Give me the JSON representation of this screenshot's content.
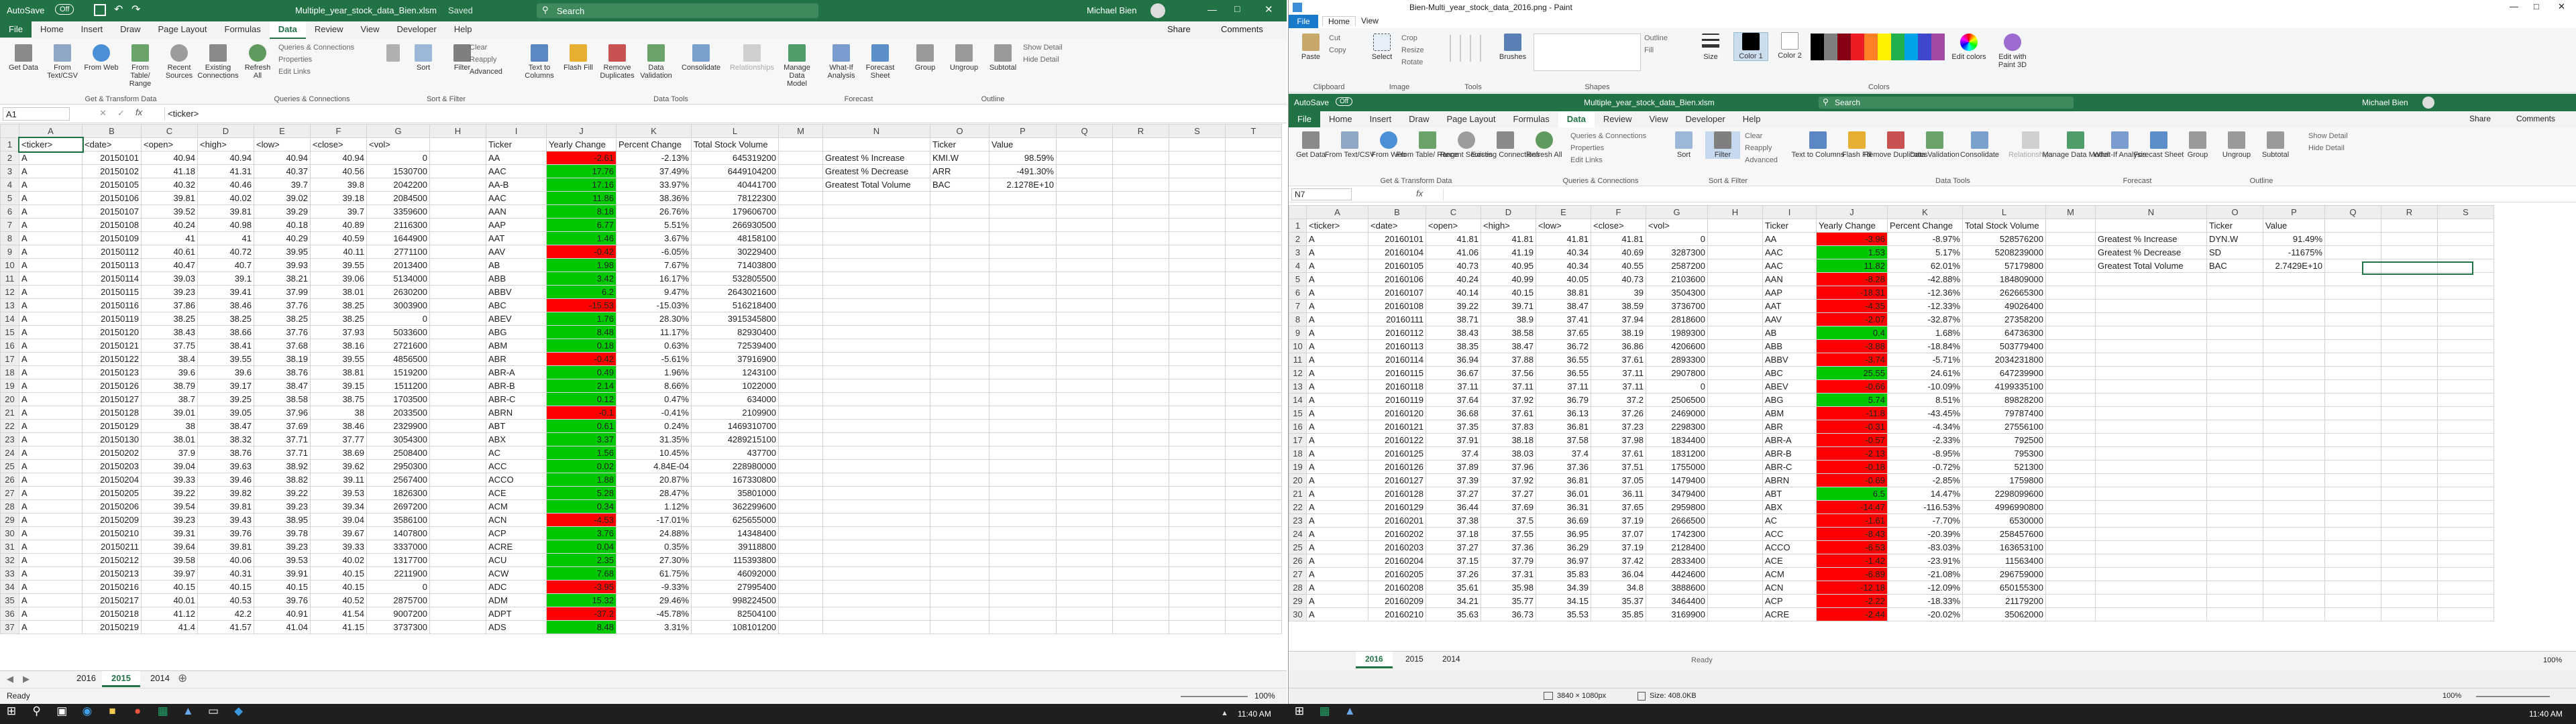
{
  "taskbar": {
    "search_hint": "Type here to search",
    "clock_left": "11:40 AM",
    "clock_right": "11:40 AM"
  },
  "left": {
    "autosave": "AutoSave",
    "autosave_state": "Off",
    "title": "Multiple_year_stock_data_Bien.xlsm",
    "saved": "Saved",
    "search": "Search",
    "user": "Michael Bien",
    "tabs": [
      "File",
      "Home",
      "Insert",
      "Draw",
      "Page Layout",
      "Formulas",
      "Data",
      "Review",
      "View",
      "Developer",
      "Help"
    ],
    "share": "Share",
    "comments": "Comments",
    "ribbon": {
      "get": [
        "Get Data",
        "From Text/CSV",
        "From Web",
        "From Table/ Range",
        "Recent Sources",
        "Existing Connections"
      ],
      "queries": [
        "Refresh All",
        "Queries & Connections",
        "Properties",
        "Edit Links"
      ],
      "sort": [
        "Sort",
        "Filter",
        "Clear",
        "Reapply",
        "Advanced"
      ],
      "tools": [
        "Text to Columns",
        "Flash Fill",
        "Remove Duplicates",
        "Data Validation",
        "Consolidate",
        "Relationships",
        "Manage Data Model"
      ],
      "forecast": [
        "What-If Analysis",
        "Forecast Sheet"
      ],
      "outline": [
        "Group",
        "Ungroup",
        "Subtotal",
        "Show Detail",
        "Hide Detail"
      ],
      "groups": [
        "Get & Transform Data",
        "Queries & Connections",
        "Sort & Filter",
        "Data Tools",
        "Forecast",
        "Outline"
      ]
    },
    "namebox": "A1",
    "formula": "<ticker>",
    "cols": [
      "A",
      "B",
      "C",
      "D",
      "E",
      "F",
      "G",
      "H",
      "I",
      "J",
      "K",
      "L",
      "M",
      "N",
      "O",
      "P",
      "Q",
      "R",
      "S",
      "T"
    ],
    "headers": [
      "<ticker>",
      "<date>",
      "<open>",
      "<high>",
      "<low>",
      "<close>",
      "<vol>",
      "",
      "Ticker",
      "Yearly Change",
      "Percent Change",
      "Total Stock Volume",
      "",
      "",
      "Ticker",
      "Value"
    ],
    "summary": [
      [
        "Greatest % Increase",
        "KMI.W",
        "98.59%"
      ],
      [
        "Greatest % Decrease",
        "ARR",
        "-491.30%"
      ],
      [
        "Greatest Total Volume",
        "BAC",
        "2.1278E+10"
      ]
    ],
    "rows": [
      [
        "A",
        "20150101",
        "40.94",
        "40.94",
        "40.94",
        "40.94",
        "0",
        "AA",
        "-2.61",
        "-2.13%",
        "645319200",
        "r"
      ],
      [
        "A",
        "20150102",
        "41.18",
        "41.31",
        "40.37",
        "40.56",
        "1530700",
        "AAC",
        "17.76",
        "37.49%",
        "6449104200",
        "g"
      ],
      [
        "A",
        "20150105",
        "40.32",
        "40.46",
        "39.7",
        "39.8",
        "2042200",
        "AA-B",
        "17.16",
        "33.97%",
        "40441700",
        "g"
      ],
      [
        "A",
        "20150106",
        "39.81",
        "40.02",
        "39.02",
        "39.18",
        "2084500",
        "AAC",
        "11.86",
        "38.36%",
        "78122300",
        "g"
      ],
      [
        "A",
        "20150107",
        "39.52",
        "39.81",
        "39.29",
        "39.7",
        "3359600",
        "AAN",
        "8.18",
        "26.76%",
        "179606700",
        "g"
      ],
      [
        "A",
        "20150108",
        "40.24",
        "40.98",
        "40.18",
        "40.89",
        "2116300",
        "AAP",
        "6.77",
        "5.51%",
        "266930500",
        "g"
      ],
      [
        "A",
        "20150109",
        "41",
        "41",
        "40.29",
        "40.59",
        "1644900",
        "AAT",
        "1.46",
        "3.67%",
        "48158100",
        "g"
      ],
      [
        "A",
        "20150112",
        "40.61",
        "40.72",
        "39.95",
        "40.11",
        "2771100",
        "AAV",
        "-0.42",
        "-6.05%",
        "30229400",
        "r"
      ],
      [
        "A",
        "20150113",
        "40.47",
        "40.7",
        "39.93",
        "39.55",
        "2013400",
        "AB",
        "1.98",
        "7.67%",
        "71403800",
        "g"
      ],
      [
        "A",
        "20150114",
        "39.03",
        "39.1",
        "38.21",
        "39.06",
        "5134000",
        "ABB",
        "3.42",
        "16.17%",
        "532805500",
        "g"
      ],
      [
        "A",
        "20150115",
        "39.23",
        "39.41",
        "37.99",
        "38.01",
        "2630200",
        "ABBV",
        "6.2",
        "9.47%",
        "2643021600",
        "g"
      ],
      [
        "A",
        "20150116",
        "37.86",
        "38.46",
        "37.76",
        "38.25",
        "3003900",
        "ABC",
        "-15.53",
        "-15.03%",
        "516218400",
        "r"
      ],
      [
        "A",
        "20150119",
        "38.25",
        "38.25",
        "38.25",
        "38.25",
        "0",
        "ABEV",
        "1.76",
        "28.30%",
        "3915345800",
        "g"
      ],
      [
        "A",
        "20150120",
        "38.43",
        "38.66",
        "37.76",
        "37.93",
        "5033600",
        "ABG",
        "8.48",
        "11.17%",
        "82930400",
        "g"
      ],
      [
        "A",
        "20150121",
        "37.75",
        "38.41",
        "37.68",
        "38.16",
        "2721600",
        "ABM",
        "0.18",
        "0.63%",
        "72539400",
        "g"
      ],
      [
        "A",
        "20150122",
        "38.4",
        "39.55",
        "38.19",
        "39.55",
        "4856500",
        "ABR",
        "-0.42",
        "-5.61%",
        "37916900",
        "r"
      ],
      [
        "A",
        "20150123",
        "39.6",
        "39.6",
        "38.76",
        "38.81",
        "1519200",
        "ABR-A",
        "0.49",
        "1.96%",
        "1243100",
        "g"
      ],
      [
        "A",
        "20150126",
        "38.79",
        "39.17",
        "38.47",
        "39.15",
        "1511200",
        "ABR-B",
        "2.14",
        "8.66%",
        "1022000",
        "g"
      ],
      [
        "A",
        "20150127",
        "38.7",
        "39.25",
        "38.58",
        "38.75",
        "1703500",
        "ABR-C",
        "0.12",
        "0.47%",
        "634000",
        "g"
      ],
      [
        "A",
        "20150128",
        "39.01",
        "39.05",
        "37.96",
        "38",
        "2033500",
        "ABRN",
        "-0.1",
        "-0.41%",
        "2109900",
        "r"
      ],
      [
        "A",
        "20150129",
        "38",
        "38.47",
        "37.69",
        "38.46",
        "2329900",
        "ABT",
        "0.61",
        "0.24%",
        "1469310700",
        "g"
      ],
      [
        "A",
        "20150130",
        "38.01",
        "38.32",
        "37.71",
        "37.77",
        "3054300",
        "ABX",
        "3.37",
        "31.35%",
        "4289215100",
        "g"
      ],
      [
        "A",
        "20150202",
        "37.9",
        "38.76",
        "37.71",
        "38.69",
        "2508400",
        "AC",
        "1.56",
        "10.45%",
        "437700",
        "g"
      ],
      [
        "A",
        "20150203",
        "39.04",
        "39.63",
        "38.92",
        "39.62",
        "2950300",
        "ACC",
        "0.02",
        "4.84E-04",
        "228980000",
        "g"
      ],
      [
        "A",
        "20150204",
        "39.33",
        "39.46",
        "38.82",
        "39.11",
        "2567400",
        "ACCO",
        "1.88",
        "20.87%",
        "167330800",
        "g"
      ],
      [
        "A",
        "20150205",
        "39.22",
        "39.82",
        "39.22",
        "39.53",
        "1826300",
        "ACE",
        "5.28",
        "28.47%",
        "35801000",
        "g"
      ],
      [
        "A",
        "20150206",
        "39.54",
        "39.81",
        "39.23",
        "39.34",
        "2697200",
        "ACM",
        "0.34",
        "1.12%",
        "362299600",
        "g"
      ],
      [
        "A",
        "20150209",
        "39.23",
        "39.43",
        "38.95",
        "39.04",
        "3586100",
        "ACN",
        "-4.53",
        "-17.01%",
        "625655000",
        "r"
      ],
      [
        "A",
        "20150210",
        "39.31",
        "39.76",
        "39.78",
        "39.67",
        "1407800",
        "ACP",
        "3.76",
        "24.88%",
        "14348400",
        "g"
      ],
      [
        "A",
        "20150211",
        "39.64",
        "39.81",
        "39.23",
        "39.33",
        "3337000",
        "ACRE",
        "0.04",
        "0.35%",
        "39118800",
        "g"
      ],
      [
        "A",
        "20150212",
        "39.58",
        "40.06",
        "39.53",
        "40.02",
        "1317700",
        "ACU",
        "2.35",
        "27.30%",
        "115393800",
        "g"
      ],
      [
        "A",
        "20150213",
        "39.97",
        "40.31",
        "39.91",
        "40.15",
        "2211900",
        "ACW",
        "7.68",
        "61.75%",
        "46092000",
        "g"
      ],
      [
        "A",
        "20150216",
        "40.15",
        "40.15",
        "40.15",
        "40.15",
        "0",
        "ADC",
        "-3.95",
        "-9.33%",
        "27995400",
        "r"
      ],
      [
        "A",
        "20150217",
        "40.01",
        "40.53",
        "39.76",
        "40.52",
        "2875700",
        "ADM",
        "15.32",
        "29.46%",
        "998224500",
        "g"
      ],
      [
        "A",
        "20150218",
        "41.12",
        "42.2",
        "40.91",
        "41.54",
        "9007200",
        "ADPT",
        "-37.2",
        "-45.78%",
        "82504100",
        "r"
      ],
      [
        "A",
        "20150219",
        "41.4",
        "41.57",
        "41.04",
        "41.15",
        "3737300",
        "ADS",
        "8.48",
        "3.31%",
        "108101200",
        "g"
      ]
    ],
    "sheets": [
      "2016",
      "2015",
      "2014"
    ],
    "active_sheet": "2015",
    "status": {
      "ready": "Ready",
      "zoom": "100%"
    }
  },
  "paint": {
    "title": "Bien-Multi_year_stock_data_2016.png - Paint",
    "tabs": [
      "File",
      "Home",
      "View"
    ],
    "groups": [
      "Clipboard",
      "Image",
      "Tools",
      "Shapes",
      "Colors"
    ],
    "tools": [
      "Paste",
      "Cut",
      "Copy",
      "Select",
      "Crop",
      "Resize",
      "Rotate",
      "Brushes",
      "Outline",
      "Fill",
      "Size",
      "Color 1",
      "Color 2",
      "Edit colors",
      "Edit with Paint 3D"
    ],
    "status": {
      "dims": "3840 × 1080px",
      "size": "Size: 408.0KB",
      "zoom": "100%"
    }
  },
  "right": {
    "autosave": "AutoSave",
    "autosave_state": "Off",
    "title": "Multiple_year_stock_data_Bien.xlsm",
    "search": "Search",
    "user": "Michael Bien",
    "tabs": [
      "File",
      "Home",
      "Insert",
      "Draw",
      "Page Layout",
      "Formulas",
      "Data",
      "Review",
      "View",
      "Developer",
      "Help"
    ],
    "share": "Share",
    "comments": "Comments",
    "namebox": "N7",
    "formula": "",
    "cols": [
      "A",
      "B",
      "C",
      "D",
      "E",
      "F",
      "G",
      "H",
      "I",
      "J",
      "K",
      "L",
      "M",
      "N",
      "O",
      "P",
      "Q",
      "R",
      "S"
    ],
    "headers": [
      "<ticker>",
      "<date>",
      "<open>",
      "<high>",
      "<low>",
      "<close>",
      "<vol>",
      "",
      "Ticker",
      "Yearly Change",
      "Percent Change",
      "Total Stock Volume",
      "",
      "",
      "Ticker",
      "Value"
    ],
    "summary": [
      [
        "Greatest % Increase",
        "DYN.W",
        "91.49%"
      ],
      [
        "Greatest % Decrease",
        "SD",
        "-11675%"
      ],
      [
        "Greatest Total Volume",
        "BAC",
        "2.7429E+10"
      ]
    ],
    "rows": [
      [
        "A",
        "20160101",
        "41.81",
        "41.81",
        "41.81",
        "41.81",
        "0",
        "AA",
        "-3.96",
        "-8.97%",
        "528576200",
        "r"
      ],
      [
        "A",
        "20160104",
        "41.06",
        "41.19",
        "40.34",
        "40.69",
        "3287300",
        "AAC",
        "1.53",
        "5.17%",
        "5208239000",
        "g"
      ],
      [
        "A",
        "20160105",
        "40.73",
        "40.95",
        "40.34",
        "40.55",
        "2587200",
        "AAC",
        "11.82",
        "62.01%",
        "57179800",
        "g"
      ],
      [
        "A",
        "20160106",
        "40.24",
        "40.99",
        "40.05",
        "40.73",
        "2103600",
        "AAN",
        "-8.28",
        "-42.88%",
        "184809000",
        "r"
      ],
      [
        "A",
        "20160107",
        "40.14",
        "40.15",
        "38.81",
        "39",
        "3504300",
        "AAP",
        "-18.31",
        "-12.36%",
        "262665300",
        "r"
      ],
      [
        "A",
        "20160108",
        "39.22",
        "39.71",
        "38.47",
        "38.59",
        "3736700",
        "AAT",
        "-4.35",
        "-12.33%",
        "49026400",
        "r"
      ],
      [
        "A",
        "20160111",
        "38.71",
        "38.9",
        "37.41",
        "37.94",
        "2818600",
        "AAV",
        "-2.07",
        "-32.87%",
        "27358200",
        "r"
      ],
      [
        "A",
        "20160112",
        "38.43",
        "38.58",
        "37.65",
        "38.19",
        "1989300",
        "AB",
        "0.4",
        "1.68%",
        "64736300",
        "g"
      ],
      [
        "A",
        "20160113",
        "38.35",
        "38.47",
        "36.72",
        "36.86",
        "4206600",
        "ABB",
        "-3.88",
        "-18.84%",
        "503779400",
        "r"
      ],
      [
        "A",
        "20160114",
        "36.94",
        "37.88",
        "36.55",
        "37.61",
        "2893300",
        "ABBV",
        "-3.74",
        "-5.71%",
        "2034231800",
        "r"
      ],
      [
        "A",
        "20160115",
        "36.67",
        "37.56",
        "36.55",
        "37.11",
        "2907800",
        "ABC",
        "25.55",
        "24.61%",
        "647239900",
        "g"
      ],
      [
        "A",
        "20160118",
        "37.11",
        "37.11",
        "37.11",
        "37.11",
        "0",
        "ABEV",
        "-0.66",
        "-10.09%",
        "4199335100",
        "r"
      ],
      [
        "A",
        "20160119",
        "37.64",
        "37.92",
        "36.79",
        "37.2",
        "2506500",
        "ABG",
        "5.74",
        "8.51%",
        "89828200",
        "g"
      ],
      [
        "A",
        "20160120",
        "36.68",
        "37.61",
        "36.13",
        "37.26",
        "2469000",
        "ABM",
        "-11.8",
        "-43.45%",
        "79787400",
        "r"
      ],
      [
        "A",
        "20160121",
        "37.35",
        "37.83",
        "36.81",
        "37.23",
        "2298300",
        "ABR",
        "-0.31",
        "-4.34%",
        "27556100",
        "r"
      ],
      [
        "A",
        "20160122",
        "37.91",
        "38.18",
        "37.58",
        "37.98",
        "1834400",
        "ABR-A",
        "-0.57",
        "-2.33%",
        "792500",
        "r"
      ],
      [
        "A",
        "20160125",
        "37.4",
        "38.03",
        "37.4",
        "37.61",
        "1831200",
        "ABR-B",
        "-2.13",
        "-8.95%",
        "795300",
        "r"
      ],
      [
        "A",
        "20160126",
        "37.89",
        "37.96",
        "37.36",
        "37.51",
        "1755000",
        "ABR-C",
        "-0.18",
        "-0.72%",
        "521300",
        "r"
      ],
      [
        "A",
        "20160127",
        "37.39",
        "37.92",
        "36.81",
        "37.05",
        "1479400",
        "ABRN",
        "-0.69",
        "-2.85%",
        "1759800",
        "r"
      ],
      [
        "A",
        "20160128",
        "37.27",
        "37.27",
        "36.01",
        "36.11",
        "3479400",
        "ABT",
        "6.5",
        "14.47%",
        "2298099600",
        "g"
      ],
      [
        "A",
        "20160129",
        "36.44",
        "37.69",
        "36.31",
        "37.65",
        "2959800",
        "ABX",
        "-14.47",
        "-116.53%",
        "4996990800",
        "r"
      ],
      [
        "A",
        "20160201",
        "37.38",
        "37.5",
        "36.69",
        "37.19",
        "2666500",
        "AC",
        "-1.61",
        "-7.70%",
        "6530000",
        "r"
      ],
      [
        "A",
        "20160202",
        "37.18",
        "37.55",
        "36.95",
        "37.07",
        "1742300",
        "ACC",
        "-8.43",
        "-20.39%",
        "258457600",
        "r"
      ],
      [
        "A",
        "20160203",
        "37.27",
        "37.36",
        "36.29",
        "37.19",
        "2128400",
        "ACCO",
        "-6.53",
        "-83.03%",
        "163653100",
        "r"
      ],
      [
        "A",
        "20160204",
        "37.15",
        "37.79",
        "36.97",
        "37.42",
        "2833400",
        "ACE",
        "-1.42",
        "-23.91%",
        "11563400",
        "r"
      ],
      [
        "A",
        "20160205",
        "37.26",
        "37.31",
        "35.83",
        "36.04",
        "4424600",
        "ACM",
        "-6.89",
        "-21.08%",
        "296759000",
        "r"
      ],
      [
        "A",
        "20160208",
        "35.61",
        "35.98",
        "34.39",
        "34.8",
        "3888600",
        "ACN",
        "-12.18",
        "-12.09%",
        "650155300",
        "r"
      ],
      [
        "A",
        "20160209",
        "34.21",
        "35.77",
        "34.15",
        "35.37",
        "3464400",
        "ACP",
        "-2.22",
        "-18.33%",
        "21179200",
        "r"
      ],
      [
        "A",
        "20160210",
        "35.63",
        "36.73",
        "35.53",
        "35.85",
        "3169900",
        "ACRE",
        "-2.44",
        "-20.02%",
        "35062000",
        "r"
      ]
    ],
    "sheets": [
      "2016",
      "2015",
      "2014"
    ],
    "active_sheet": "2016",
    "status": {
      "ready": "Ready",
      "zoom": "100%"
    }
  }
}
